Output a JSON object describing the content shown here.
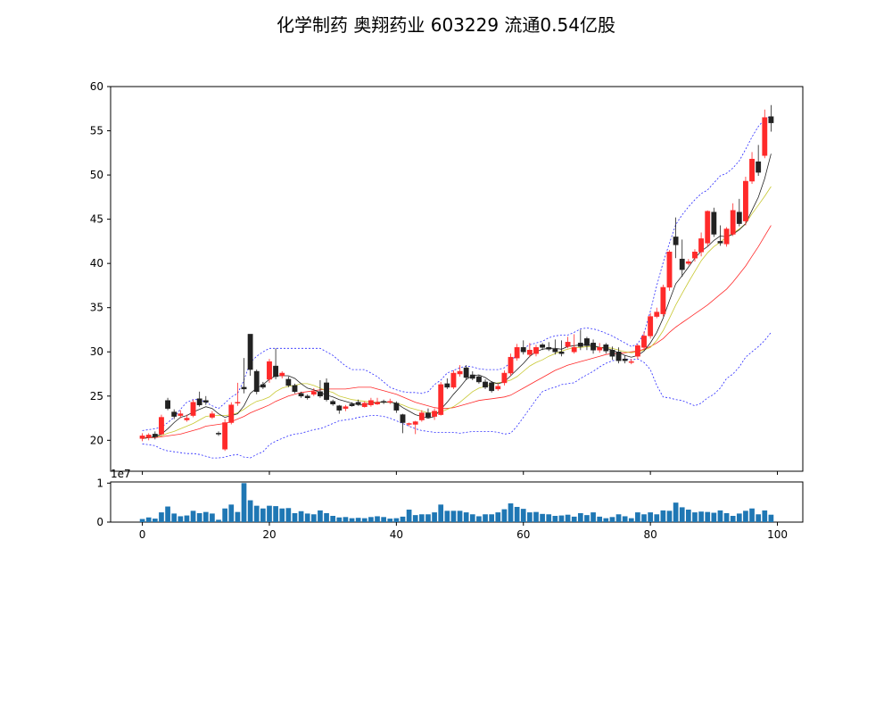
{
  "title": "化学制药 奥翔药业 603229 流通0.54亿股",
  "colors": {
    "up": "#ff2a2a",
    "down": "#222222",
    "ma_fast": "#222222",
    "ma_mid": "#c8c832",
    "ma_slow": "#ff2a2a",
    "bollinger": "#2a2aff",
    "volume": "#1f77b4"
  },
  "chart_data": [
    {
      "type": "candlestick",
      "title": "化学制药 奥翔药业 603229 流通0.54亿股",
      "xlim": [
        -5,
        104
      ],
      "ylim": [
        16.5,
        60
      ],
      "yticks": [
        20,
        25,
        30,
        35,
        40,
        45,
        50,
        55,
        60
      ],
      "x": [
        0,
        1,
        2,
        3,
        4,
        5,
        6,
        7,
        8,
        9,
        10,
        11,
        12,
        13,
        14,
        15,
        16,
        17,
        18,
        19,
        20,
        21,
        22,
        23,
        24,
        25,
        26,
        27,
        28,
        29,
        30,
        31,
        32,
        33,
        34,
        35,
        36,
        37,
        38,
        39,
        40,
        41,
        42,
        43,
        44,
        45,
        46,
        47,
        48,
        49,
        50,
        51,
        52,
        53,
        54,
        55,
        56,
        57,
        58,
        59,
        60,
        61,
        62,
        63,
        64,
        65,
        66,
        67,
        68,
        69,
        70,
        71,
        72,
        73,
        74,
        75,
        76,
        77,
        78,
        79,
        80,
        81,
        82,
        83,
        84,
        85,
        86,
        87,
        88,
        89,
        90,
        91,
        92,
        93,
        94,
        95,
        96,
        97,
        98,
        99
      ],
      "open": [
        20.2,
        20.3,
        20.7,
        20.7,
        24.5,
        23.2,
        22.8,
        22.3,
        22.8,
        24.7,
        24.5,
        22.6,
        20.8,
        19.0,
        22.0,
        24.2,
        26.0,
        32.0,
        27.8,
        26.3,
        26.9,
        28.4,
        27.3,
        26.9,
        26.2,
        25.3,
        25.0,
        25.2,
        25.5,
        26.5,
        24.4,
        23.9,
        23.6,
        24.1,
        24.3,
        23.8,
        24.0,
        24.1,
        24.4,
        24.4,
        24.2,
        22.9,
        21.9,
        21.8,
        22.3,
        23.1,
        22.7,
        22.9,
        26.4,
        26.0,
        27.5,
        28.2,
        27.4,
        27.2,
        26.6,
        26.5,
        25.8,
        26.5,
        27.6,
        29.3,
        30.5,
        29.7,
        29.8,
        30.8,
        30.5,
        30.3,
        30.0,
        30.6,
        30.0,
        31.0,
        31.5,
        31.0,
        30.2,
        30.8,
        30.2,
        30.0,
        29.2,
        28.8,
        29.5,
        30.5,
        31.8,
        34.0,
        34.3,
        37.3,
        43.0,
        40.5,
        40.0,
        40.6,
        41.3,
        42.3,
        45.8,
        42.5,
        42.2,
        43.3,
        45.8,
        44.8,
        49.3,
        51.5,
        52.2,
        56.6
      ],
      "close": [
        20.5,
        20.6,
        20.4,
        22.6,
        23.6,
        22.7,
        23.0,
        22.5,
        24.3,
        24.0,
        24.3,
        23.0,
        20.7,
        22.0,
        24.0,
        24.3,
        25.8,
        28.0,
        25.5,
        26.0,
        28.9,
        27.2,
        27.6,
        26.2,
        25.5,
        25.0,
        24.8,
        25.5,
        25.0,
        24.6,
        24.1,
        23.4,
        23.8,
        23.9,
        24.1,
        24.2,
        24.5,
        24.3,
        24.3,
        24.4,
        23.4,
        22.0,
        21.9,
        22.1,
        23.1,
        22.6,
        23.3,
        26.3,
        26.0,
        27.6,
        27.8,
        27.1,
        27.0,
        26.6,
        26.0,
        25.6,
        26.1,
        27.6,
        29.4,
        30.5,
        30.0,
        30.2,
        30.5,
        30.5,
        30.3,
        30.0,
        29.8,
        31.1,
        30.5,
        30.6,
        30.7,
        30.2,
        30.5,
        30.1,
        29.5,
        29.0,
        29.0,
        28.9,
        30.7,
        31.8,
        34.0,
        34.5,
        37.3,
        41.3,
        42.1,
        39.3,
        40.2,
        41.3,
        42.8,
        45.9,
        43.3,
        42.3,
        43.9,
        46.0,
        44.5,
        49.3,
        51.8,
        50.3,
        56.5,
        55.9
      ],
      "high": [
        20.8,
        20.8,
        21.0,
        22.9,
        24.8,
        23.5,
        23.4,
        22.9,
        24.6,
        25.5,
        25.0,
        23.3,
        21.0,
        22.4,
        24.3,
        26.5,
        29.3,
        32.0,
        28.0,
        26.6,
        29.2,
        30.4,
        27.8,
        27.2,
        26.4,
        25.5,
        25.2,
        25.9,
        26.8,
        27.0,
        24.6,
        24.0,
        24.0,
        24.3,
        24.6,
        24.4,
        24.8,
        24.8,
        24.6,
        24.7,
        24.4,
        23.0,
        22.0,
        22.2,
        23.4,
        23.6,
        23.6,
        26.6,
        27.0,
        27.9,
        28.5,
        28.5,
        27.8,
        27.4,
        26.9,
        26.7,
        26.4,
        27.9,
        29.8,
        30.9,
        31.3,
        31.0,
        30.8,
        31.0,
        31.1,
        31.4,
        31.3,
        31.7,
        32.0,
        32.5,
        31.7,
        31.4,
        31.0,
        31.0,
        30.6,
        30.5,
        29.6,
        29.2,
        30.9,
        32.3,
        34.4,
        35.0,
        37.6,
        41.5,
        45.2,
        42.7,
        40.5,
        41.6,
        43.5,
        46.0,
        46.3,
        44.3,
        44.1,
        46.8,
        47.3,
        49.8,
        52.6,
        53.4,
        57.4,
        57.9
      ],
      "low": [
        19.9,
        20.0,
        20.1,
        20.5,
        23.4,
        22.4,
        22.5,
        22.1,
        22.6,
        23.8,
        24.0,
        22.4,
        20.5,
        18.8,
        21.8,
        23.9,
        25.3,
        27.3,
        25.2,
        25.8,
        26.5,
        26.9,
        27.0,
        26.0,
        25.3,
        24.8,
        24.6,
        25.0,
        24.8,
        24.4,
        23.9,
        23.0,
        23.3,
        23.8,
        23.9,
        23.7,
        23.8,
        24.0,
        24.1,
        24.1,
        23.1,
        20.8,
        21.6,
        20.7,
        22.1,
        22.5,
        22.3,
        22.8,
        25.8,
        25.8,
        27.2,
        26.8,
        26.8,
        26.4,
        25.8,
        25.4,
        25.6,
        26.2,
        27.3,
        29.0,
        29.7,
        29.4,
        29.5,
        30.2,
        30.1,
        29.7,
        29.5,
        30.4,
        29.8,
        30.2,
        30.2,
        29.8,
        29.9,
        29.8,
        29.1,
        28.7,
        28.7,
        28.6,
        29.2,
        30.2,
        31.5,
        33.8,
        34.0,
        36.9,
        40.6,
        38.5,
        39.8,
        40.2,
        40.8,
        41.9,
        43.0,
        42.0,
        41.9,
        43.1,
        44.2,
        44.3,
        49.0,
        49.9,
        51.9,
        54.9
      ],
      "ma_fast": [
        20.2,
        20.3,
        20.4,
        20.7,
        21.3,
        22.0,
        22.6,
        22.8,
        23.2,
        23.5,
        23.8,
        23.6,
        23.0,
        22.6,
        22.8,
        23.0,
        23.9,
        25.3,
        25.9,
        26.3,
        26.9,
        27.3,
        27.3,
        27.3,
        27.0,
        26.4,
        25.9,
        25.7,
        25.4,
        25.1,
        24.9,
        24.6,
        24.4,
        24.2,
        24.0,
        24.0,
        24.2,
        24.3,
        24.3,
        24.3,
        24.2,
        23.7,
        23.3,
        22.9,
        22.7,
        22.5,
        22.7,
        23.5,
        24.3,
        25.2,
        26.0,
        26.9,
        27.3,
        27.4,
        27.1,
        26.6,
        26.4,
        26.6,
        27.3,
        28.0,
        28.7,
        29.5,
        30.0,
        30.3,
        30.4,
        30.4,
        30.3,
        30.6,
        30.7,
        30.8,
        30.8,
        30.7,
        30.5,
        30.4,
        30.2,
        29.9,
        29.6,
        29.4,
        29.6,
        30.1,
        31.0,
        32.2,
        33.8,
        35.8,
        37.7,
        38.6,
        39.6,
        40.6,
        41.4,
        41.9,
        42.6,
        43.1,
        43.0,
        43.3,
        43.8,
        44.5,
        46.0,
        47.5,
        49.6,
        52.4
      ],
      "ma_mid": [
        20.2,
        20.3,
        20.4,
        20.5,
        20.8,
        21.0,
        21.3,
        21.6,
        21.9,
        22.3,
        22.7,
        22.8,
        22.8,
        22.8,
        22.9,
        23.1,
        23.5,
        24.0,
        24.4,
        24.6,
        24.9,
        25.5,
        25.9,
        26.1,
        26.2,
        26.4,
        26.4,
        26.2,
        25.9,
        25.6,
        25.4,
        25.0,
        24.8,
        24.6,
        24.5,
        24.4,
        24.3,
        24.3,
        24.3,
        24.3,
        24.2,
        24.0,
        23.7,
        23.5,
        23.3,
        23.1,
        23.1,
        23.2,
        23.5,
        23.8,
        24.3,
        24.9,
        25.5,
        25.9,
        26.1,
        26.3,
        26.5,
        26.6,
        26.8,
        27.2,
        27.8,
        28.4,
        28.8,
        29.1,
        29.5,
        29.8,
        30.1,
        30.3,
        30.5,
        30.5,
        30.6,
        30.6,
        30.5,
        30.5,
        30.4,
        30.2,
        30.0,
        29.9,
        30.0,
        30.2,
        30.5,
        31.3,
        32.4,
        33.8,
        35.3,
        36.6,
        37.9,
        39.1,
        40.3,
        41.2,
        41.9,
        42.4,
        43.0,
        43.4,
        43.9,
        44.5,
        45.6,
        46.6,
        47.6,
        48.7
      ],
      "ma_slow": [
        20.2,
        20.3,
        20.3,
        20.4,
        20.5,
        20.6,
        20.7,
        20.9,
        21.1,
        21.3,
        21.6,
        21.7,
        21.8,
        21.9,
        22.1,
        22.4,
        22.7,
        23.1,
        23.4,
        23.7,
        24.0,
        24.4,
        24.7,
        25.0,
        25.2,
        25.4,
        25.5,
        25.6,
        25.7,
        25.8,
        25.8,
        25.8,
        25.8,
        25.9,
        26.0,
        26.0,
        26.0,
        25.8,
        25.6,
        25.4,
        25.2,
        24.9,
        24.6,
        24.3,
        24.1,
        23.9,
        23.7,
        23.6,
        23.6,
        23.7,
        23.9,
        24.1,
        24.3,
        24.5,
        24.6,
        24.7,
        24.8,
        24.9,
        25.1,
        25.5,
        25.9,
        26.3,
        26.7,
        27.1,
        27.5,
        27.9,
        28.2,
        28.5,
        28.7,
        28.9,
        29.1,
        29.3,
        29.5,
        29.7,
        29.8,
        29.8,
        29.9,
        30.0,
        30.1,
        30.3,
        30.6,
        31.0,
        31.5,
        32.2,
        32.8,
        33.3,
        33.8,
        34.3,
        34.8,
        35.3,
        35.9,
        36.5,
        37.1,
        37.9,
        38.8,
        39.7,
        40.8,
        41.9,
        43.1,
        44.3
      ],
      "boll_upper": [
        21.1,
        21.2,
        21.3,
        21.5,
        22.0,
        22.6,
        23.5,
        24.3,
        24.6,
        24.6,
        24.3,
        23.9,
        23.6,
        24.2,
        24.9,
        25.3,
        26.8,
        28.8,
        29.5,
        30.0,
        30.4,
        30.4,
        30.4,
        30.4,
        30.4,
        30.4,
        30.4,
        30.4,
        30.4,
        30.0,
        29.6,
        29.0,
        28.4,
        28.0,
        28.0,
        28.0,
        27.6,
        27.2,
        26.6,
        26.0,
        25.7,
        25.5,
        25.4,
        25.4,
        25.3,
        25.5,
        26.3,
        26.8,
        27.6,
        27.9,
        28.2,
        28.4,
        28.3,
        28.1,
        28.0,
        28.0,
        28.0,
        28.2,
        28.8,
        29.8,
        30.4,
        30.8,
        31.0,
        31.2,
        31.6,
        31.8,
        31.9,
        31.9,
        32.2,
        32.6,
        32.7,
        32.6,
        32.4,
        32.1,
        31.8,
        31.4,
        31.0,
        30.6,
        30.9,
        32.1,
        34.6,
        37.5,
        40.1,
        42.3,
        44.4,
        45.5,
        46.4,
        47.2,
        47.9,
        48.3,
        49.1,
        49.9,
        50.2,
        50.8,
        51.6,
        52.9,
        54.3,
        55.5,
        56.3,
        56.7
      ],
      "boll_lower": [
        19.6,
        19.5,
        19.4,
        19.0,
        18.8,
        18.7,
        18.6,
        18.5,
        18.5,
        18.4,
        18.2,
        18.0,
        18.0,
        18.1,
        18.3,
        18.4,
        18.1,
        18.0,
        18.4,
        18.7,
        19.5,
        19.9,
        20.2,
        20.5,
        20.7,
        20.8,
        21.0,
        21.2,
        21.3,
        21.6,
        21.9,
        22.2,
        22.3,
        22.4,
        22.6,
        22.7,
        22.8,
        22.8,
        22.7,
        22.5,
        22.2,
        21.9,
        21.6,
        21.3,
        21.1,
        21.0,
        20.9,
        20.9,
        20.9,
        20.9,
        20.8,
        20.9,
        21.0,
        21.0,
        21.0,
        21.0,
        20.9,
        20.7,
        20.8,
        21.6,
        22.6,
        23.6,
        24.6,
        25.5,
        25.8,
        26.0,
        26.3,
        26.4,
        26.5,
        27.0,
        27.4,
        27.8,
        28.3,
        28.7,
        29.0,
        29.1,
        29.2,
        29.1,
        29.2,
        28.8,
        28.0,
        26.2,
        24.9,
        24.8,
        24.6,
        24.5,
        24.2,
        23.9,
        24.2,
        24.8,
        25.2,
        25.9,
        27.0,
        27.5,
        28.3,
        29.4,
        30.0,
        30.6,
        31.3,
        32.2
      ]
    },
    {
      "type": "bar",
      "x": [
        0,
        1,
        2,
        3,
        4,
        5,
        6,
        7,
        8,
        9,
        10,
        11,
        12,
        13,
        14,
        15,
        16,
        17,
        18,
        19,
        20,
        21,
        22,
        23,
        24,
        25,
        26,
        27,
        28,
        29,
        30,
        31,
        32,
        33,
        34,
        35,
        36,
        37,
        38,
        39,
        40,
        41,
        42,
        43,
        44,
        45,
        46,
        47,
        48,
        49,
        50,
        51,
        52,
        53,
        54,
        55,
        56,
        57,
        58,
        59,
        60,
        61,
        62,
        63,
        64,
        65,
        66,
        67,
        68,
        69,
        70,
        71,
        72,
        73,
        74,
        75,
        76,
        77,
        78,
        79,
        80,
        81,
        82,
        83,
        84,
        85,
        86,
        87,
        88,
        89,
        90,
        91,
        92,
        93,
        94,
        95,
        96,
        97,
        98,
        99
      ],
      "values": [
        0.08,
        0.12,
        0.09,
        0.25,
        0.4,
        0.22,
        0.15,
        0.17,
        0.29,
        0.23,
        0.26,
        0.22,
        0.06,
        0.35,
        0.45,
        0.26,
        1.0,
        0.56,
        0.42,
        0.35,
        0.42,
        0.41,
        0.35,
        0.36,
        0.23,
        0.28,
        0.22,
        0.2,
        0.3,
        0.23,
        0.16,
        0.12,
        0.13,
        0.1,
        0.11,
        0.1,
        0.13,
        0.15,
        0.13,
        0.09,
        0.1,
        0.14,
        0.32,
        0.18,
        0.2,
        0.2,
        0.25,
        0.45,
        0.29,
        0.29,
        0.29,
        0.25,
        0.2,
        0.15,
        0.2,
        0.2,
        0.25,
        0.33,
        0.48,
        0.39,
        0.34,
        0.25,
        0.26,
        0.21,
        0.2,
        0.16,
        0.17,
        0.19,
        0.14,
        0.23,
        0.18,
        0.25,
        0.14,
        0.1,
        0.13,
        0.2,
        0.15,
        0.1,
        0.25,
        0.2,
        0.25,
        0.2,
        0.3,
        0.29,
        0.5,
        0.38,
        0.32,
        0.25,
        0.27,
        0.26,
        0.24,
        0.3,
        0.23,
        0.16,
        0.22,
        0.29,
        0.35,
        0.2,
        0.3,
        0.19
      ],
      "ylim": [
        0,
        1.03
      ],
      "yticks": [
        0,
        1
      ],
      "ylabel_offset": "1e7",
      "xticks": [
        0,
        20,
        40,
        60,
        80,
        100
      ],
      "xlim": [
        -5,
        104
      ]
    }
  ]
}
